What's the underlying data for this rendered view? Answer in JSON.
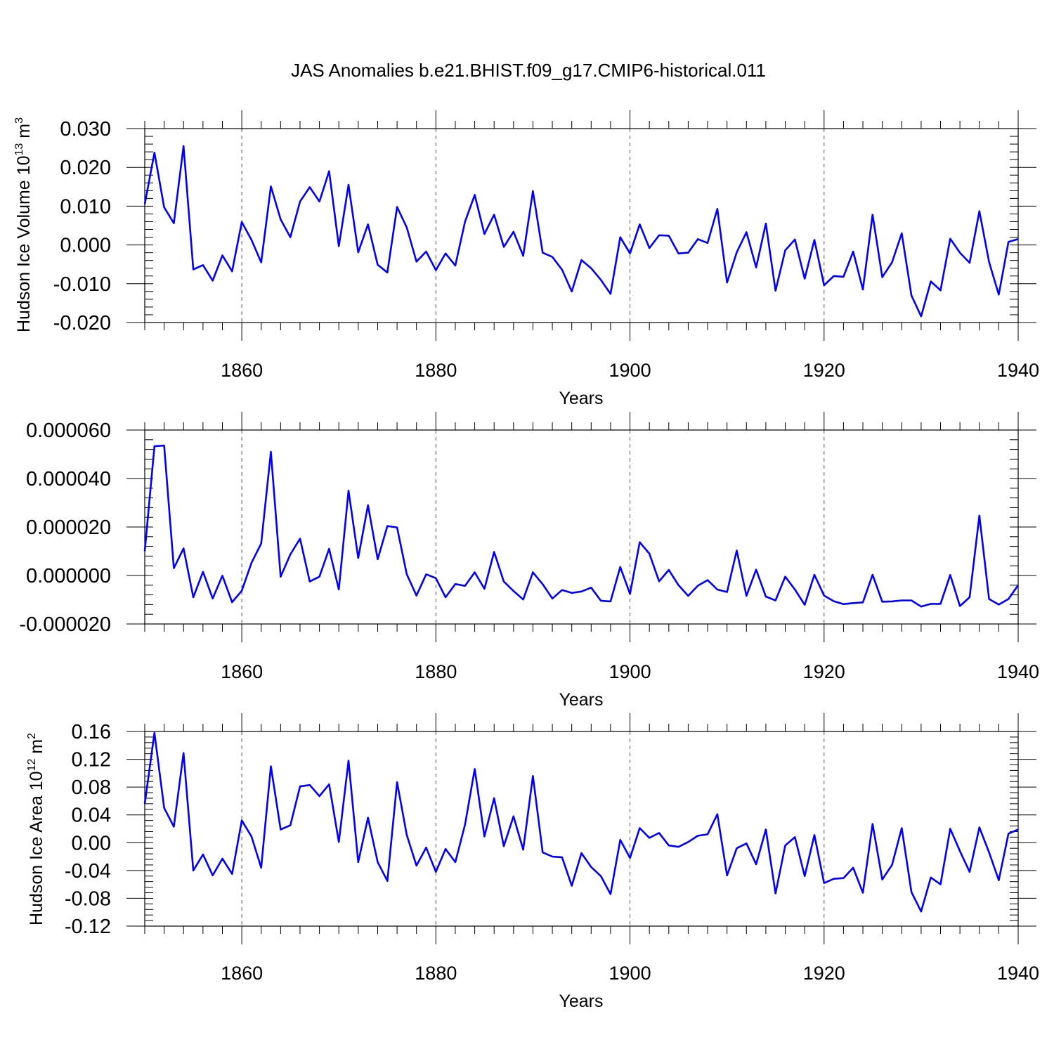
{
  "title": "JAS Anomalies b.e21.BHIST.f09_g17.CMIP6-historical.011",
  "line_color": "#0000ff",
  "chart_data": [
    {
      "type": "line",
      "ylabel": "Hudson Ice Volume 10",
      "ylabel_exp": "13",
      "ylabel_unit": " m",
      "ylabel_unit_exp": "3",
      "xlabel": "Years",
      "xlim": [
        1850,
        1940
      ],
      "ylim": [
        -0.02,
        0.03
      ],
      "x_ticks": [
        1860,
        1880,
        1900,
        1920,
        1940
      ],
      "x_tick_labels": [
        "1860",
        "1880",
        "1900",
        "1920",
        "1940"
      ],
      "y_ticks": [
        -0.02,
        -0.01,
        0,
        0.01,
        0.02,
        0.03
      ],
      "y_tick_labels": [
        "-0.020",
        "-0.010",
        "0.000",
        "0.010",
        "0.020",
        "0.030"
      ],
      "y_minor_step": 0.002,
      "x_start": 1850,
      "values": [
        0.0105,
        0.0238,
        0.0097,
        0.0056,
        0.0255,
        -0.0063,
        -0.0052,
        -0.0092,
        -0.0027,
        -0.0068,
        0.0059,
        0.0013,
        -0.0045,
        0.0151,
        0.0066,
        0.002,
        0.0112,
        0.0149,
        0.0112,
        0.019,
        -0.0003,
        0.0155,
        -0.0019,
        0.0053,
        -0.0051,
        -0.0071,
        0.0098,
        0.0045,
        -0.0043,
        -0.0017,
        -0.0065,
        -0.0022,
        -0.0053,
        0.006,
        0.0129,
        0.0028,
        0.0078,
        -0.0005,
        0.0034,
        -0.0028,
        0.0139,
        -0.002,
        -0.0031,
        -0.0064,
        -0.012,
        -0.0039,
        -0.006,
        -0.009,
        -0.0126,
        0.002,
        -0.0022,
        0.0053,
        -0.0008,
        0.0025,
        0.0024,
        -0.0022,
        -0.002,
        0.0015,
        0.0005,
        0.0093,
        -0.0097,
        -0.0019,
        0.0033,
        -0.0058,
        0.0055,
        -0.0118,
        -0.0014,
        0.0014,
        -0.0087,
        0.0013,
        -0.0104,
        -0.008,
        -0.0082,
        -0.0017,
        -0.0115,
        0.0078,
        -0.0083,
        -0.0045,
        0.003,
        -0.013,
        -0.0184,
        -0.0094,
        -0.0117,
        0.0016,
        -0.002,
        -0.0046,
        0.0087,
        -0.0044,
        -0.0128,
        0.0008,
        0.0015
      ]
    },
    {
      "type": "line",
      "ylabel": "",
      "xlabel": "Years",
      "xlim": [
        1850,
        1940
      ],
      "ylim": [
        -2e-05,
        6e-05
      ],
      "x_ticks": [
        1860,
        1880,
        1900,
        1920,
        1940
      ],
      "x_tick_labels": [
        "1860",
        "1880",
        "1900",
        "1920",
        "1940"
      ],
      "y_ticks": [
        -2e-05,
        0,
        2e-05,
        4e-05,
        6e-05
      ],
      "y_tick_labels": [
        "-0.000020",
        "0.000000",
        "0.000020",
        "0.000040",
        "0.000060"
      ],
      "y_minor_step": 4e-06,
      "x_start": 1850,
      "values": [
        1e-05,
        5.33e-05,
        5.36e-05,
        3e-06,
        1.12e-05,
        -9e-06,
        1.5e-06,
        -9.5e-06,
        -1e-07,
        -1.1e-05,
        -6.3e-06,
        5.2e-06,
        1.32e-05,
        5.1e-05,
        -5e-07,
        8.7e-06,
        1.52e-05,
        -2.5e-06,
        -5e-07,
        1.1e-05,
        -5.8e-06,
        3.5e-05,
        7.2e-06,
        2.9e-05,
        6.7e-06,
        2.04e-05,
        1.98e-05,
        5e-07,
        -8.3e-06,
        5e-07,
        -1.1e-06,
        -9e-06,
        -3.5e-06,
        -4.3e-06,
        1.3e-06,
        -5.5e-06,
        9.7e-06,
        -2.5e-06,
        -6.4e-06,
        -9.9e-06,
        1.3e-06,
        -3.6e-06,
        -9.5e-06,
        -6e-06,
        -7.2e-06,
        -6.6e-06,
        -5e-06,
        -1.04e-05,
        -1.07e-05,
        3.5e-06,
        -7.6e-06,
        1.37e-05,
        9e-06,
        -2.4e-06,
        2.3e-06,
        -4e-06,
        -8.4e-06,
        -4.2e-06,
        -1.9e-06,
        -5.8e-06,
        -6.8e-06,
        1.03e-05,
        -8.4e-06,
        2.4e-06,
        -8.7e-06,
        -1.03e-05,
        -5e-07,
        -5.8e-06,
        -1.21e-05,
        3e-07,
        -8.3e-06,
        -1.06e-05,
        -1.18e-05,
        -1.14e-05,
        -1.11e-05,
        3e-07,
        -1.08e-05,
        -1.07e-05,
        -1.03e-05,
        -1.03e-05,
        -1.28e-05,
        -1.17e-05,
        -1.17e-05,
        2e-07,
        -1.26e-05,
        -9e-06,
        2.47e-05,
        -9.7e-06,
        -1.2e-05,
        -9.7e-06,
        -4e-06
      ]
    },
    {
      "type": "line",
      "ylabel": "Hudson Ice Area 10",
      "ylabel_exp": "12",
      "ylabel_unit": " m",
      "ylabel_unit_exp": "2",
      "xlabel": "Years",
      "xlim": [
        1850,
        1940
      ],
      "ylim": [
        -0.12,
        0.16
      ],
      "x_ticks": [
        1860,
        1880,
        1900,
        1920,
        1940
      ],
      "x_tick_labels": [
        "1860",
        "1880",
        "1900",
        "1920",
        "1940"
      ],
      "y_ticks": [
        -0.12,
        -0.08,
        -0.04,
        0,
        0.04,
        0.08,
        0.12,
        0.16
      ],
      "y_tick_labels": [
        "-0.12",
        "-0.08",
        "-0.04",
        "0.00",
        "0.04",
        "0.08",
        "0.12",
        "0.16"
      ],
      "y_minor_step": 0.008,
      "x_start": 1850,
      "values": [
        0.056,
        0.158,
        0.05,
        0.023,
        0.129,
        -0.04,
        -0.017,
        -0.047,
        -0.023,
        -0.045,
        0.032,
        0.009,
        -0.036,
        0.11,
        0.019,
        0.025,
        0.081,
        0.083,
        0.067,
        0.084,
        0.001,
        0.118,
        -0.028,
        0.036,
        -0.028,
        -0.055,
        0.087,
        0.011,
        -0.033,
        -0.007,
        -0.042,
        -0.009,
        -0.028,
        0.026,
        0.106,
        0.009,
        0.064,
        -0.005,
        0.038,
        -0.01,
        0.096,
        -0.014,
        -0.02,
        -0.021,
        -0.062,
        -0.015,
        -0.035,
        -0.048,
        -0.074,
        0.004,
        -0.022,
        0.021,
        0.007,
        0.014,
        -0.004,
        -0.006,
        0.001,
        0.01,
        0.012,
        0.041,
        -0.047,
        -0.008,
        -0.001,
        -0.031,
        0.019,
        -0.073,
        -0.004,
        0.008,
        -0.048,
        0.011,
        -0.058,
        -0.052,
        -0.051,
        -0.036,
        -0.072,
        0.027,
        -0.053,
        -0.032,
        0.021,
        -0.071,
        -0.099,
        -0.05,
        -0.06,
        0.02,
        -0.012,
        -0.042,
        0.022,
        -0.014,
        -0.054,
        0.013,
        0.019
      ]
    }
  ]
}
